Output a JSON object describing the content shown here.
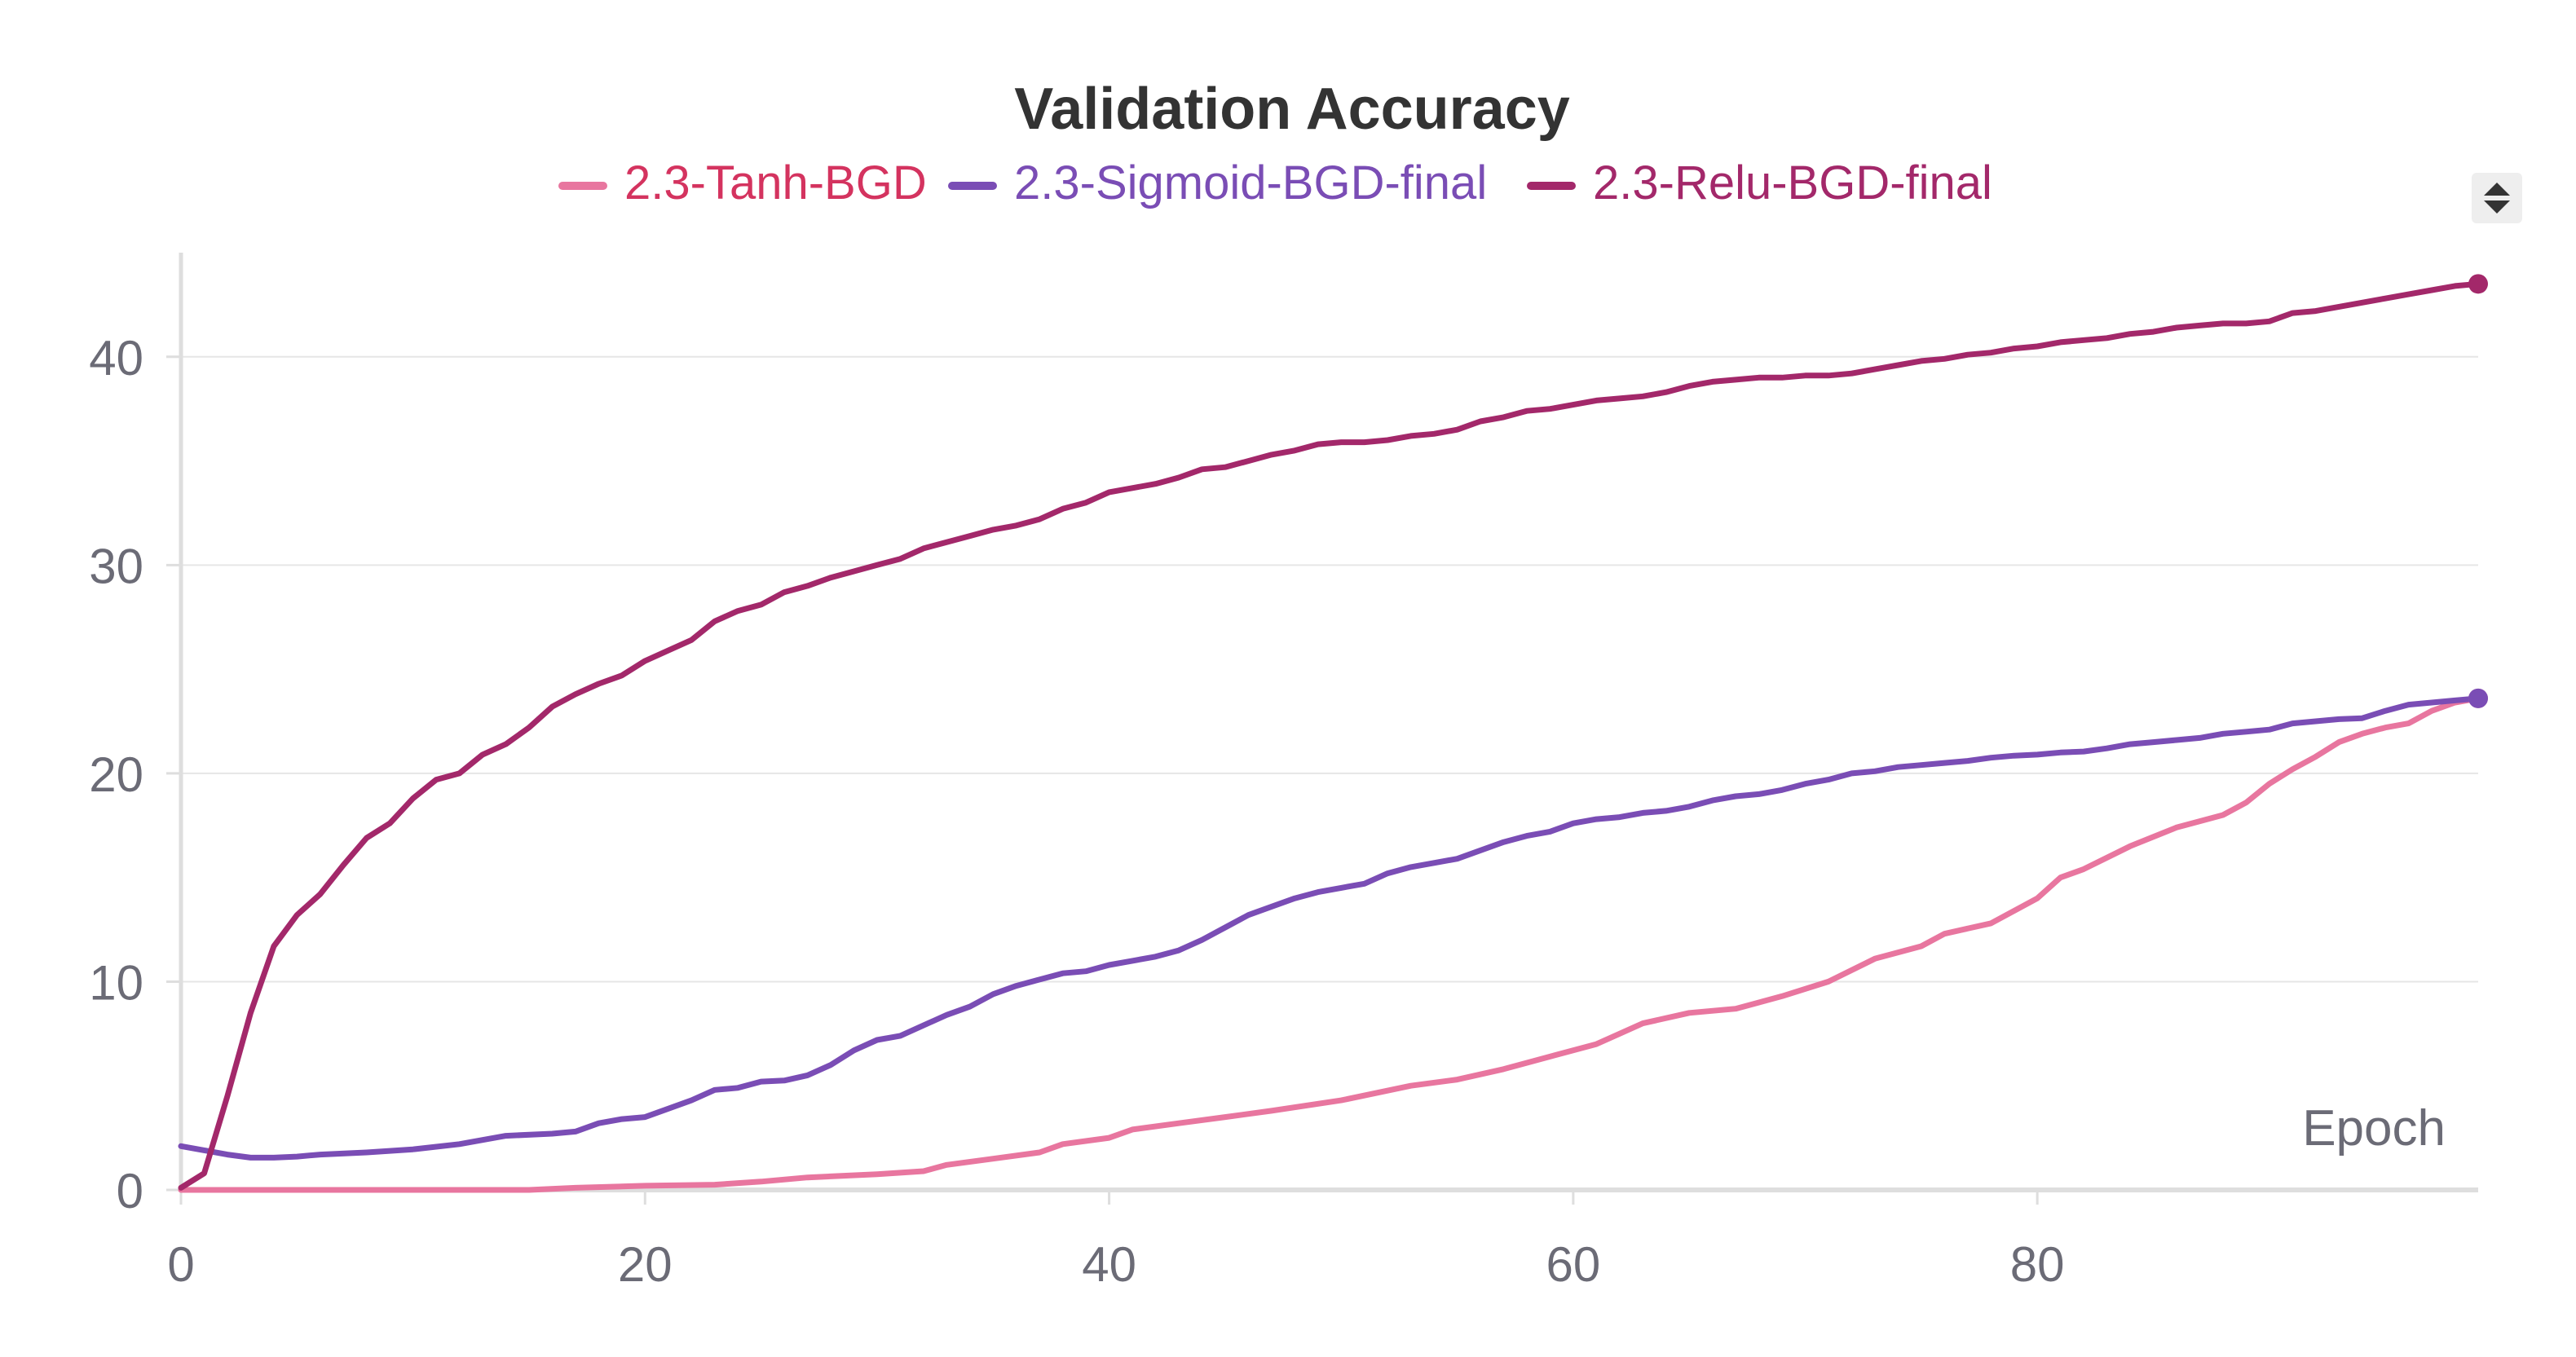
{
  "colors": {
    "text_dark": "#333333",
    "text_muted": "#6b6b76",
    "grid": "#e6e6e6",
    "axis": "#dedede",
    "control_bg": "#eeeeee",
    "control_icon": "#333333"
  },
  "chart_data": {
    "type": "line",
    "title": "Validation Accuracy",
    "xlabel": "Epoch",
    "ylabel": "",
    "xlim": [
      0,
      99
    ],
    "ylim": [
      0,
      45
    ],
    "xticks": [
      0,
      20,
      40,
      60,
      80
    ],
    "yticks": [
      0,
      10,
      20,
      30,
      40
    ],
    "grid": true,
    "legend_position": "top-center",
    "series": [
      {
        "name": "2.3-Tanh-BGD",
        "color": "#e8769f",
        "label_color": "#d4335f",
        "points": [
          [
            0,
            0
          ],
          [
            15,
            0
          ],
          [
            17,
            0.1
          ],
          [
            20,
            0.2
          ],
          [
            23,
            0.25
          ],
          [
            25,
            0.4
          ],
          [
            27,
            0.6
          ],
          [
            30,
            0.75
          ],
          [
            32,
            0.9
          ],
          [
            33,
            1.2
          ],
          [
            35,
            1.5
          ],
          [
            37,
            1.8
          ],
          [
            38,
            2.2
          ],
          [
            40,
            2.5
          ],
          [
            41,
            2.9
          ],
          [
            43,
            3.2
          ],
          [
            45,
            3.5
          ],
          [
            47,
            3.8
          ],
          [
            50,
            4.3
          ],
          [
            53,
            5.0
          ],
          [
            55,
            5.3
          ],
          [
            57,
            5.8
          ],
          [
            59,
            6.4
          ],
          [
            61,
            7.0
          ],
          [
            63,
            8.0
          ],
          [
            65,
            8.5
          ],
          [
            67,
            8.7
          ],
          [
            69,
            9.3
          ],
          [
            71,
            10.0
          ],
          [
            73,
            11.1
          ],
          [
            75,
            11.7
          ],
          [
            76,
            12.3
          ],
          [
            78,
            12.8
          ],
          [
            80,
            14.0
          ],
          [
            81,
            15.0
          ],
          [
            82,
            15.4
          ],
          [
            84,
            16.5
          ],
          [
            86,
            17.4
          ],
          [
            88,
            18.0
          ],
          [
            89,
            18.6
          ],
          [
            90,
            19.5
          ],
          [
            91,
            20.2
          ],
          [
            92,
            20.8
          ],
          [
            93,
            21.5
          ],
          [
            94,
            21.9
          ],
          [
            95,
            22.2
          ],
          [
            96,
            22.4
          ],
          [
            97,
            23.0
          ],
          [
            98,
            23.4
          ],
          [
            99,
            23.6
          ]
        ]
      },
      {
        "name": "2.3-Sigmoid-BGD-final",
        "color": "#7a4db5",
        "label_color": "#7a4db5",
        "points": [
          [
            0,
            2.1
          ],
          [
            1,
            1.9
          ],
          [
            2,
            1.7
          ],
          [
            3,
            1.55
          ],
          [
            4,
            1.55
          ],
          [
            5,
            1.6
          ],
          [
            6,
            1.7
          ],
          [
            8,
            1.8
          ],
          [
            10,
            1.95
          ],
          [
            12,
            2.2
          ],
          [
            13,
            2.4
          ],
          [
            14,
            2.6
          ],
          [
            16,
            2.7
          ],
          [
            17,
            2.8
          ],
          [
            18,
            3.2
          ],
          [
            19,
            3.4
          ],
          [
            20,
            3.5
          ],
          [
            21,
            3.9
          ],
          [
            22,
            4.3
          ],
          [
            23,
            4.8
          ],
          [
            24,
            4.9
          ],
          [
            25,
            5.2
          ],
          [
            26,
            5.25
          ],
          [
            27,
            5.5
          ],
          [
            28,
            6.0
          ],
          [
            29,
            6.7
          ],
          [
            30,
            7.2
          ],
          [
            31,
            7.4
          ],
          [
            32,
            7.9
          ],
          [
            33,
            8.4
          ],
          [
            34,
            8.8
          ],
          [
            35,
            9.4
          ],
          [
            36,
            9.8
          ],
          [
            37,
            10.1
          ],
          [
            38,
            10.4
          ],
          [
            39,
            10.5
          ],
          [
            40,
            10.8
          ],
          [
            41,
            11.0
          ],
          [
            42,
            11.2
          ],
          [
            43,
            11.5
          ],
          [
            44,
            12.0
          ],
          [
            45,
            12.6
          ],
          [
            46,
            13.2
          ],
          [
            47,
            13.6
          ],
          [
            48,
            14.0
          ],
          [
            49,
            14.3
          ],
          [
            50,
            14.5
          ],
          [
            51,
            14.7
          ],
          [
            52,
            15.2
          ],
          [
            53,
            15.5
          ],
          [
            54,
            15.7
          ],
          [
            55,
            15.9
          ],
          [
            56,
            16.3
          ],
          [
            57,
            16.7
          ],
          [
            58,
            17.0
          ],
          [
            59,
            17.2
          ],
          [
            60,
            17.6
          ],
          [
            61,
            17.8
          ],
          [
            62,
            17.9
          ],
          [
            63,
            18.1
          ],
          [
            64,
            18.2
          ],
          [
            65,
            18.4
          ],
          [
            66,
            18.7
          ],
          [
            67,
            18.9
          ],
          [
            68,
            19.0
          ],
          [
            69,
            19.2
          ],
          [
            70,
            19.5
          ],
          [
            71,
            19.7
          ],
          [
            72,
            20.0
          ],
          [
            73,
            20.1
          ],
          [
            74,
            20.3
          ],
          [
            75,
            20.4
          ],
          [
            76,
            20.5
          ],
          [
            77,
            20.6
          ],
          [
            78,
            20.75
          ],
          [
            79,
            20.85
          ],
          [
            80,
            20.9
          ],
          [
            81,
            21.0
          ],
          [
            82,
            21.05
          ],
          [
            83,
            21.2
          ],
          [
            84,
            21.4
          ],
          [
            85,
            21.5
          ],
          [
            86,
            21.6
          ],
          [
            87,
            21.7
          ],
          [
            88,
            21.9
          ],
          [
            89,
            22.0
          ],
          [
            90,
            22.1
          ],
          [
            91,
            22.4
          ],
          [
            92,
            22.5
          ],
          [
            93,
            22.6
          ],
          [
            94,
            22.65
          ],
          [
            95,
            23.0
          ],
          [
            96,
            23.3
          ],
          [
            97,
            23.4
          ],
          [
            98,
            23.5
          ],
          [
            99,
            23.6
          ]
        ]
      },
      {
        "name": "2.3-Relu-BGD-final",
        "color": "#a3286a",
        "label_color": "#a3286a",
        "points": [
          [
            0,
            0.1
          ],
          [
            1,
            0.8
          ],
          [
            2,
            4.5
          ],
          [
            3,
            8.5
          ],
          [
            4,
            11.7
          ],
          [
            5,
            13.2
          ],
          [
            6,
            14.2
          ],
          [
            7,
            15.6
          ],
          [
            8,
            16.9
          ],
          [
            9,
            17.6
          ],
          [
            10,
            18.8
          ],
          [
            11,
            19.7
          ],
          [
            12,
            20.0
          ],
          [
            13,
            20.9
          ],
          [
            14,
            21.4
          ],
          [
            15,
            22.2
          ],
          [
            16,
            23.2
          ],
          [
            17,
            23.8
          ],
          [
            18,
            24.3
          ],
          [
            19,
            24.7
          ],
          [
            20,
            25.4
          ],
          [
            21,
            25.9
          ],
          [
            22,
            26.4
          ],
          [
            23,
            27.3
          ],
          [
            24,
            27.8
          ],
          [
            25,
            28.1
          ],
          [
            26,
            28.7
          ],
          [
            27,
            29.0
          ],
          [
            28,
            29.4
          ],
          [
            29,
            29.7
          ],
          [
            30,
            30.0
          ],
          [
            31,
            30.3
          ],
          [
            32,
            30.8
          ],
          [
            33,
            31.1
          ],
          [
            34,
            31.4
          ],
          [
            35,
            31.7
          ],
          [
            36,
            31.9
          ],
          [
            37,
            32.2
          ],
          [
            38,
            32.7
          ],
          [
            39,
            33.0
          ],
          [
            40,
            33.5
          ],
          [
            41,
            33.7
          ],
          [
            42,
            33.9
          ],
          [
            43,
            34.2
          ],
          [
            44,
            34.6
          ],
          [
            45,
            34.7
          ],
          [
            46,
            35.0
          ],
          [
            47,
            35.3
          ],
          [
            48,
            35.5
          ],
          [
            49,
            35.8
          ],
          [
            50,
            35.9
          ],
          [
            51,
            35.9
          ],
          [
            52,
            36.0
          ],
          [
            53,
            36.2
          ],
          [
            54,
            36.3
          ],
          [
            55,
            36.5
          ],
          [
            56,
            36.9
          ],
          [
            57,
            37.1
          ],
          [
            58,
            37.4
          ],
          [
            59,
            37.5
          ],
          [
            60,
            37.7
          ],
          [
            61,
            37.9
          ],
          [
            62,
            38.0
          ],
          [
            63,
            38.1
          ],
          [
            64,
            38.3
          ],
          [
            65,
            38.6
          ],
          [
            66,
            38.8
          ],
          [
            67,
            38.9
          ],
          [
            68,
            39.0
          ],
          [
            69,
            39.0
          ],
          [
            70,
            39.1
          ],
          [
            71,
            39.1
          ],
          [
            72,
            39.2
          ],
          [
            73,
            39.4
          ],
          [
            74,
            39.6
          ],
          [
            75,
            39.8
          ],
          [
            76,
            39.9
          ],
          [
            77,
            40.1
          ],
          [
            78,
            40.2
          ],
          [
            79,
            40.4
          ],
          [
            80,
            40.5
          ],
          [
            81,
            40.7
          ],
          [
            82,
            40.8
          ],
          [
            83,
            40.9
          ],
          [
            84,
            41.1
          ],
          [
            85,
            41.2
          ],
          [
            86,
            41.4
          ],
          [
            87,
            41.5
          ],
          [
            88,
            41.6
          ],
          [
            89,
            41.6
          ],
          [
            90,
            41.7
          ],
          [
            91,
            42.1
          ],
          [
            92,
            42.2
          ],
          [
            93,
            42.4
          ],
          [
            94,
            42.6
          ],
          [
            95,
            42.8
          ],
          [
            96,
            43.0
          ],
          [
            97,
            43.2
          ],
          [
            98,
            43.4
          ],
          [
            99,
            43.5
          ]
        ]
      }
    ]
  }
}
